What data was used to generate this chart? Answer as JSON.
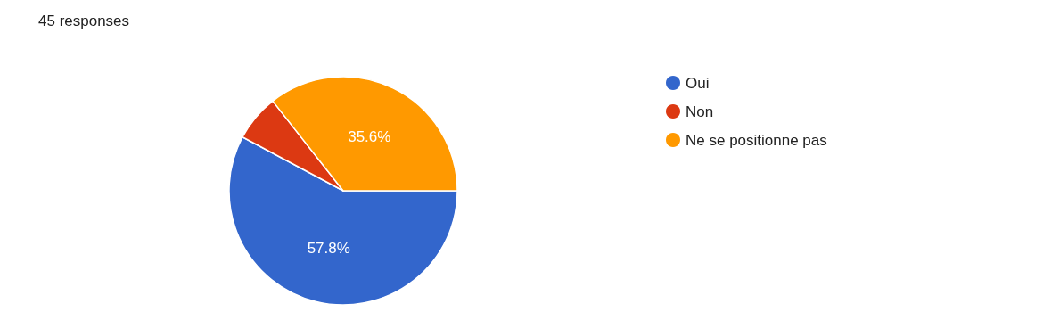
{
  "chart_data": {
    "type": "pie",
    "title": "45 responses",
    "categories": [
      "Oui",
      "Non",
      "Ne se positionne pas"
    ],
    "values": [
      57.8,
      6.6,
      35.6
    ],
    "colors": [
      "#3366cc",
      "#dc3912",
      "#ff9900"
    ],
    "value_labels": [
      "57.8%",
      null,
      "35.6%"
    ],
    "legend": "top right"
  }
}
